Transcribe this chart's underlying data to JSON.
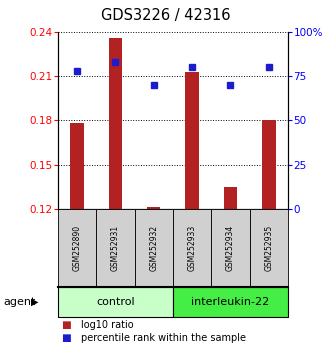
{
  "title": "GDS3226 / 42316",
  "samples": [
    "GSM252890",
    "GSM252931",
    "GSM252932",
    "GSM252933",
    "GSM252934",
    "GSM252935"
  ],
  "log10_ratio": [
    0.178,
    0.236,
    0.121,
    0.213,
    0.135,
    0.18
  ],
  "percentile_rank": [
    78,
    83,
    70,
    80,
    70,
    80
  ],
  "ylim_left": [
    0.12,
    0.24
  ],
  "ylim_right": [
    0,
    100
  ],
  "yticks_left": [
    0.12,
    0.15,
    0.18,
    0.21,
    0.24
  ],
  "yticks_right": [
    0,
    25,
    50,
    75,
    100
  ],
  "ytick_labels_right": [
    "0",
    "25",
    "50",
    "75",
    "100%"
  ],
  "bar_color": "#b22222",
  "square_color": "#1c1ccc",
  "control_label": "control",
  "treatment_label": "interleukin-22",
  "control_bg": "#c8ffc8",
  "treatment_bg": "#44ee44",
  "sample_box_bg": "#d0d0d0",
  "agent_label": "agent",
  "legend_bar": "log10 ratio",
  "legend_square": "percentile rank within the sample",
  "bar_bottom": 0.12,
  "n_control": 3,
  "n_treatment": 3
}
